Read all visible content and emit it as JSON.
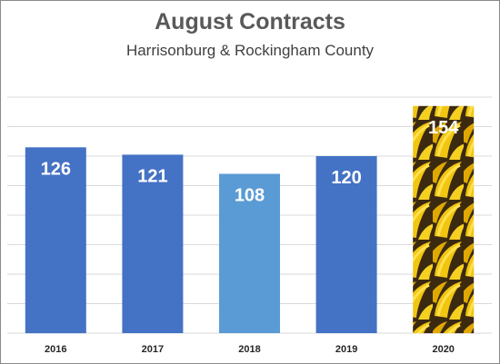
{
  "chart_data": {
    "type": "bar",
    "title": "August Contracts",
    "subtitle": "Harrisonburg & Rockingham County",
    "categories": [
      "2016",
      "2017",
      "2018",
      "2019",
      "2020"
    ],
    "values": [
      126,
      121,
      108,
      120,
      154
    ],
    "value_labels": [
      "126",
      "121",
      "108",
      "120",
      "154"
    ],
    "ylim": [
      0,
      160
    ],
    "grid": true,
    "bar_colors": [
      "#4472c4",
      "#4472c4",
      "#5b9bd5",
      "#4472c4",
      "banana-image-fill"
    ],
    "highlight_fill": {
      "base": "#f2c511",
      "dark": "#3b2a10",
      "mid": "#e0a800",
      "light": "#ffe14d"
    }
  }
}
